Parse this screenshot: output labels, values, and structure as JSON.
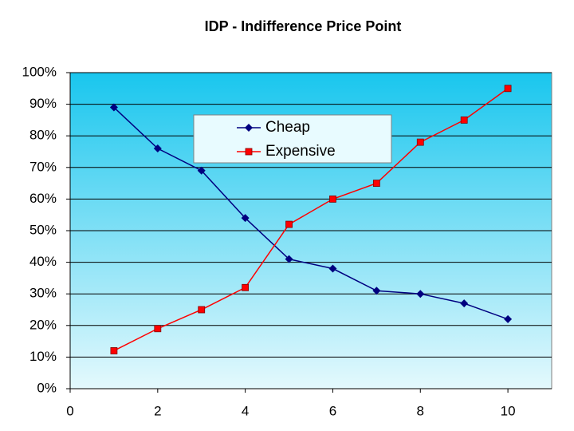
{
  "chart_data": {
    "type": "line",
    "title": "IDP - Indifference Price Point",
    "x": [
      1,
      2,
      3,
      4,
      5,
      6,
      7,
      8,
      9,
      10
    ],
    "series": [
      {
        "name": "Cheap",
        "color": "#000080",
        "marker": "diamond",
        "values": [
          89,
          76,
          69,
          54,
          41,
          38,
          31,
          30,
          27,
          22
        ]
      },
      {
        "name": "Expensive",
        "color": "#ff0000",
        "marker": "square",
        "values": [
          12,
          19,
          25,
          32,
          52,
          60,
          65,
          78,
          85,
          95
        ]
      }
    ],
    "xlim": [
      0,
      11
    ],
    "xticks": [
      0,
      2,
      4,
      6,
      8,
      10
    ],
    "ylim": [
      0,
      100
    ],
    "yticks": [
      {
        "value": 0,
        "label": "0%"
      },
      {
        "value": 10,
        "label": "10%"
      },
      {
        "value": 20,
        "label": "20%"
      },
      {
        "value": 30,
        "label": "30%"
      },
      {
        "value": 40,
        "label": "40%"
      },
      {
        "value": 50,
        "label": "50%"
      },
      {
        "value": 60,
        "label": "60%"
      },
      {
        "value": 70,
        "label": "70%"
      },
      {
        "value": 80,
        "label": "80%"
      },
      {
        "value": 90,
        "label": "90%"
      },
      {
        "value": 100,
        "label": "100%"
      }
    ],
    "grid": true
  }
}
